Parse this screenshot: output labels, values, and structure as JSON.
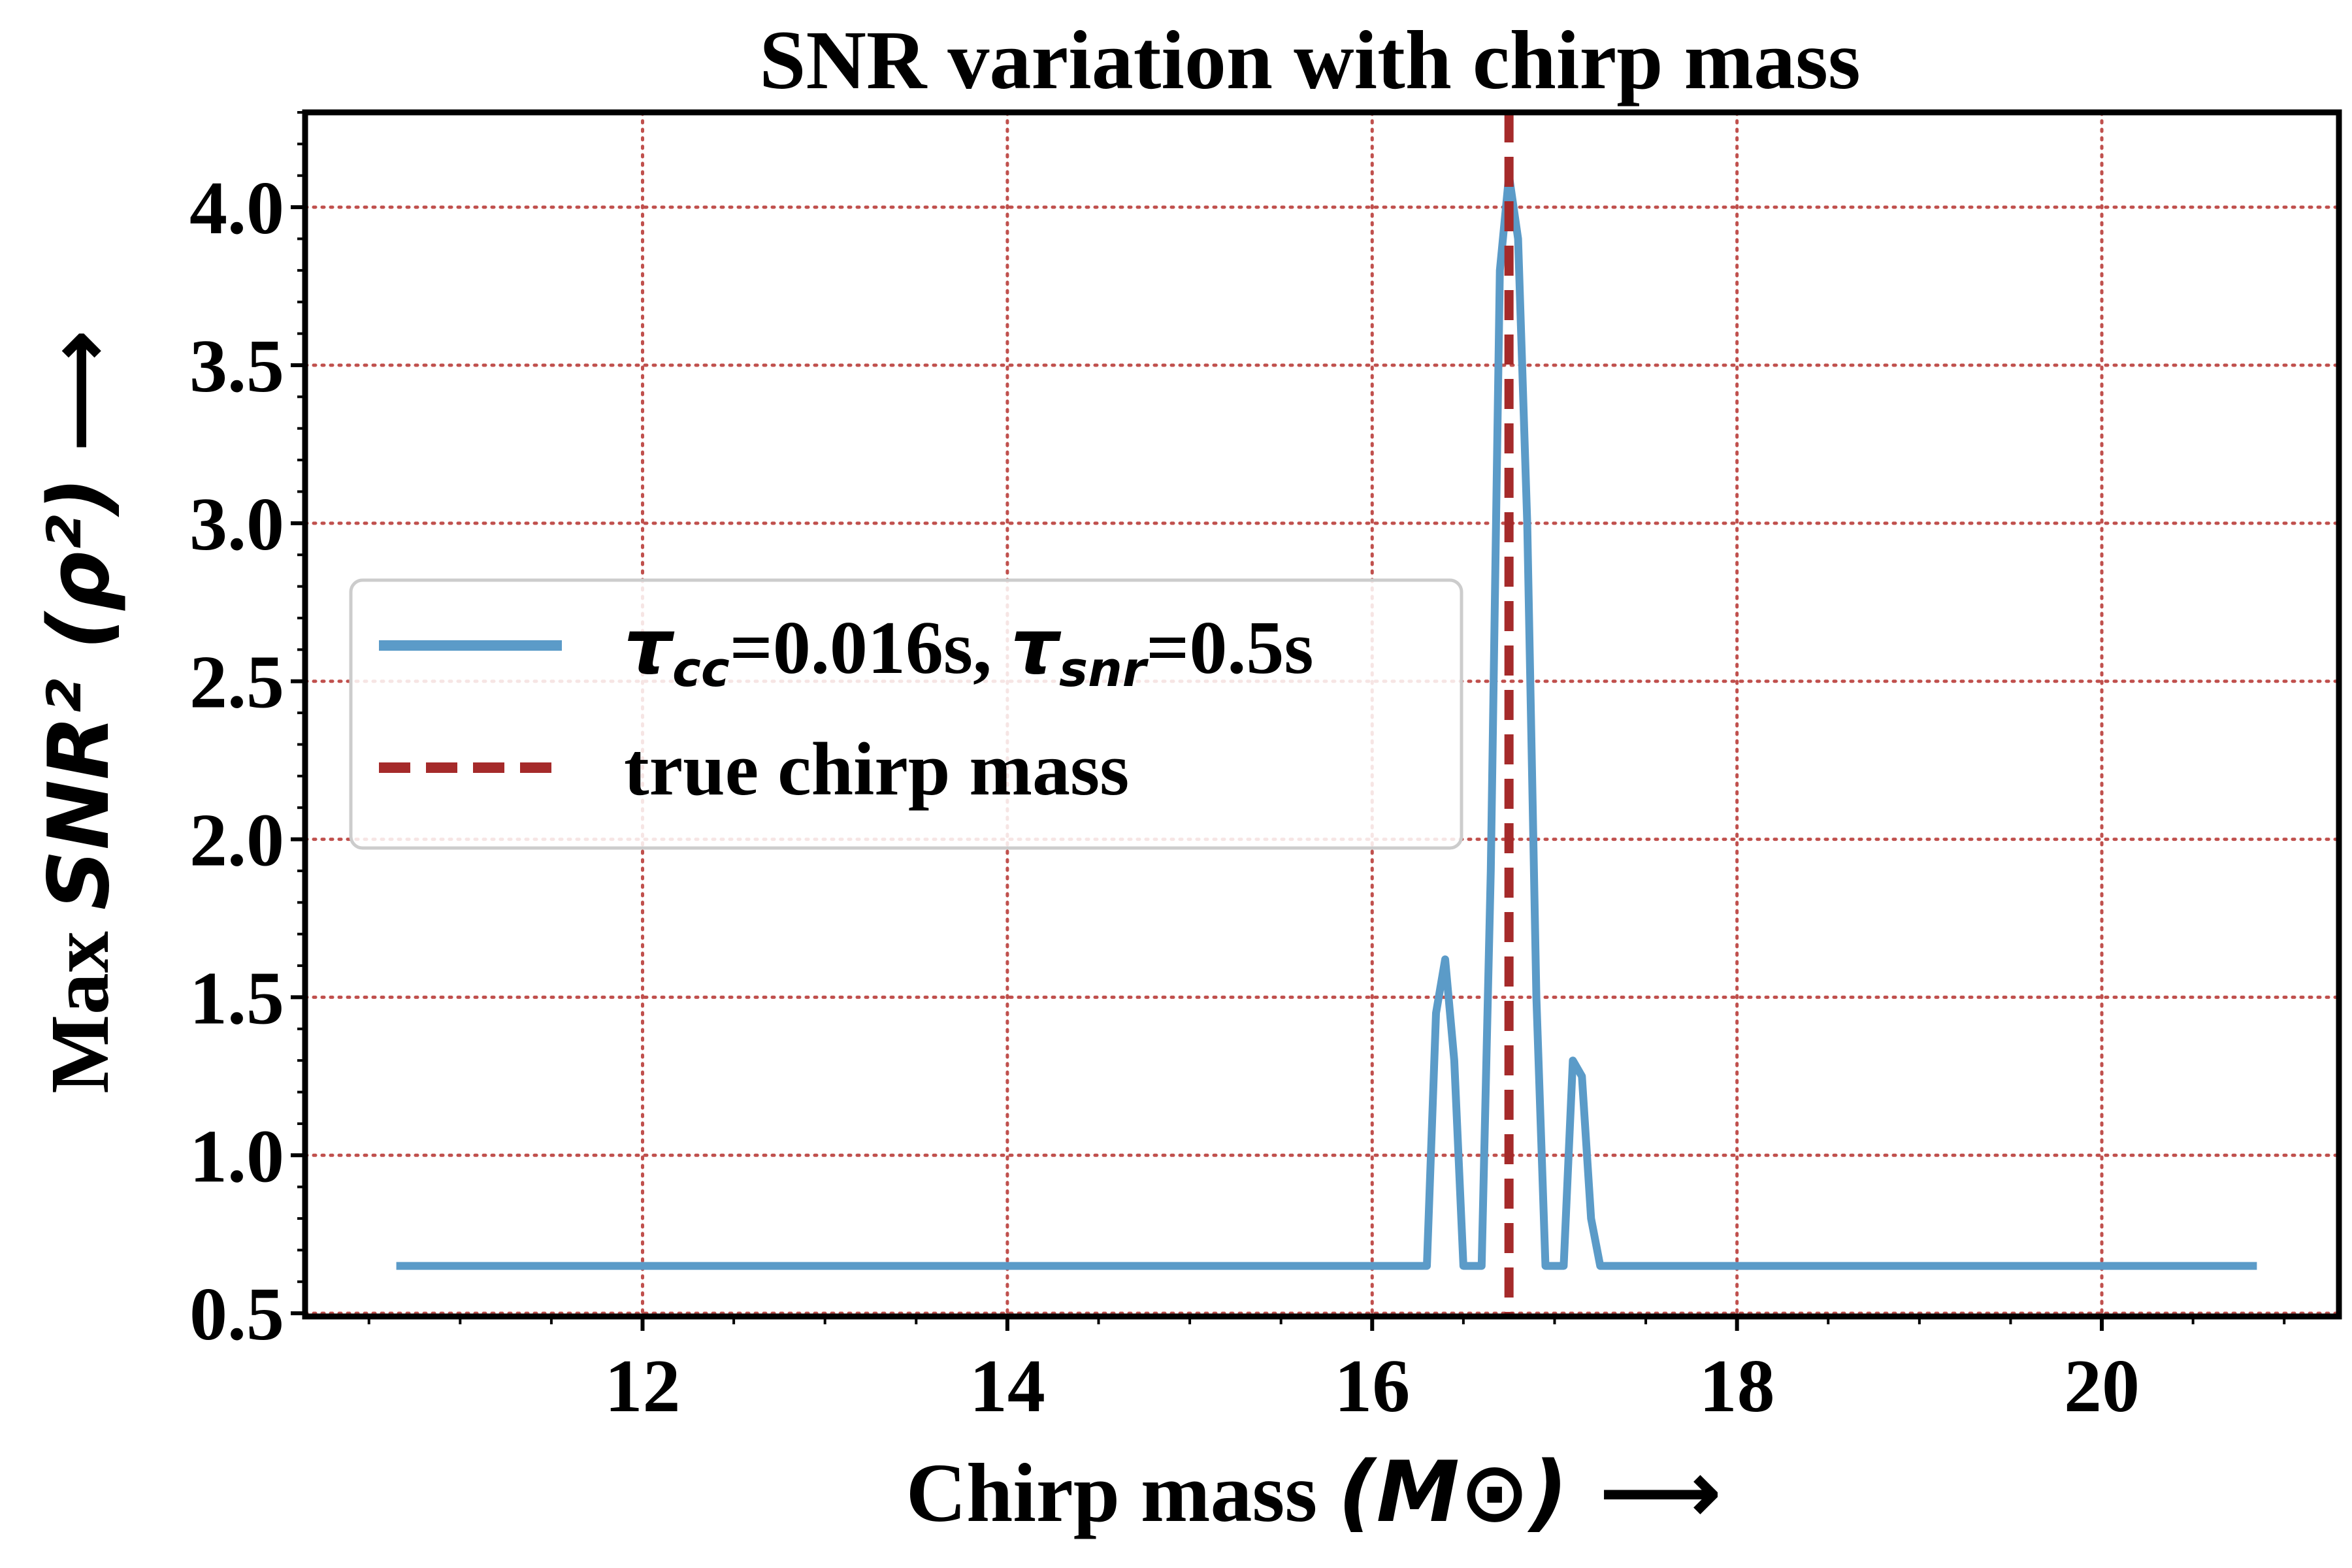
{
  "chart_data": {
    "type": "line",
    "title": "SNR variation with chirp mass",
    "xlabel": {
      "text": "Chirp mass ",
      "math": "(M⊙)",
      "arrow": "⟶"
    },
    "ylabel": {
      "text": "Max ",
      "math": "SNR² (ρ²)",
      "arrow": "⟶"
    },
    "xlim": [
      10.15,
      21.3
    ],
    "ylim": [
      0.49,
      4.3
    ],
    "xticks": [
      12,
      14,
      16,
      18,
      20
    ],
    "xtick_labels": [
      "12",
      "14",
      "16",
      "18",
      "20"
    ],
    "yticks": [
      0.5,
      1.0,
      1.5,
      2.0,
      2.5,
      3.0,
      3.5,
      4.0
    ],
    "ytick_labels": [
      "0.5",
      "1.0",
      "1.5",
      "2.0",
      "2.5",
      "3.0",
      "3.5",
      "4.0"
    ],
    "grid": true,
    "legend_position": "center-left",
    "series": [
      {
        "name": "τcc=0.016s, τsnr=0.5s",
        "legend_math_1": "τ",
        "legend_sub_1": "cc",
        "legend_text_1": "=0.016s, ",
        "legend_math_2": "τ",
        "legend_sub_2": "snr",
        "legend_text_2": "=0.5s",
        "color": "#5b9bc8",
        "style": "solid",
        "x": [
          10.65,
          16.3,
          16.35,
          16.4,
          16.45,
          16.5,
          16.55,
          16.6,
          16.65,
          16.7,
          16.75,
          16.8,
          16.85,
          16.9,
          16.95,
          17.0,
          17.05,
          17.1,
          17.15,
          17.2,
          17.25,
          20.85
        ],
        "y": [
          0.65,
          0.65,
          1.45,
          1.62,
          1.3,
          0.65,
          0.65,
          0.65,
          1.9,
          3.8,
          4.1,
          3.9,
          3.0,
          1.5,
          0.65,
          0.65,
          0.65,
          1.3,
          1.25,
          0.8,
          0.65,
          0.65
        ]
      },
      {
        "name": "true chirp mass",
        "color": "#a52a2a",
        "style": "dashed",
        "vline_x": 16.75
      }
    ]
  },
  "colors": {
    "grid": "#c0504d",
    "axes": "#000000",
    "legend_border": "#cccccc"
  }
}
